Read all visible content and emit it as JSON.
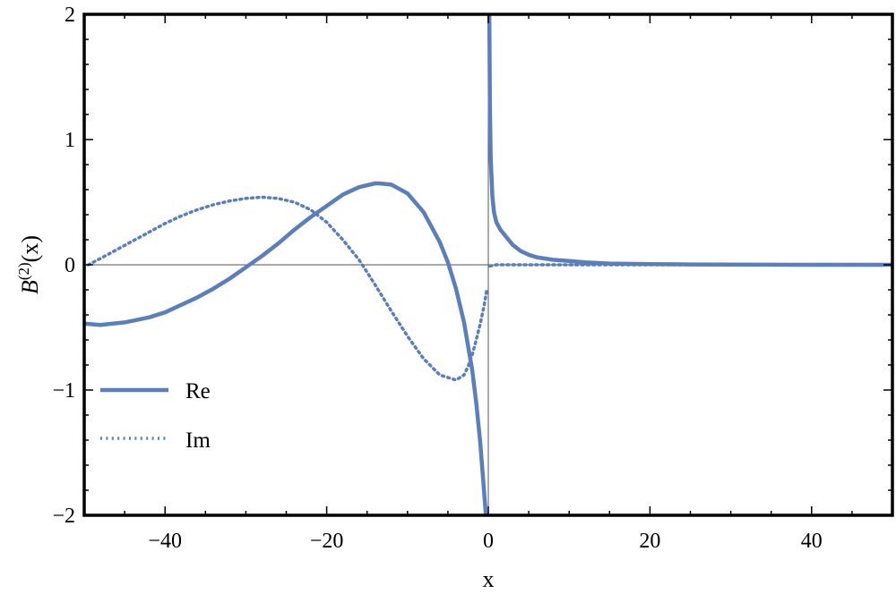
{
  "chart_data": {
    "type": "line",
    "xlabel": "x",
    "ylabel": "B(2)(x)",
    "ylabel_base": "B",
    "ylabel_sup": "(2)",
    "ylabel_arg": "(x)",
    "xlim": [
      -50,
      50
    ],
    "ylim": [
      -2,
      2
    ],
    "x_ticks": [
      -40,
      -20,
      0,
      20,
      40
    ],
    "x_tick_labels": [
      "−40",
      "−20",
      "0",
      "20",
      "40"
    ],
    "y_ticks": [
      -2,
      -1,
      0,
      1,
      2
    ],
    "y_tick_labels": [
      "−2",
      "−1",
      "0",
      "1",
      "2"
    ],
    "grid": false,
    "legend_position": "bottom-left",
    "color": "#5b7fbd",
    "series": [
      {
        "name": "Re",
        "style": "solid",
        "segments": [
          {
            "x": [
              -50,
              -48,
              -45,
              -42,
              -40,
              -38,
              -36,
              -34,
              -32,
              -30,
              -28,
              -26,
              -24,
              -22,
              -20,
              -18,
              -16,
              -14,
              -13.5,
              -12,
              -10,
              -8,
              -6,
              -5,
              -4,
              -3,
              -2,
              -1.5,
              -1,
              -0.6,
              -0.3
            ],
            "y": [
              -0.47,
              -0.48,
              -0.46,
              -0.42,
              -0.38,
              -0.32,
              -0.26,
              -0.19,
              -0.11,
              -0.02,
              0.07,
              0.17,
              0.28,
              0.38,
              0.47,
              0.56,
              0.62,
              0.65,
              0.65,
              0.64,
              0.57,
              0.42,
              0.18,
              0.02,
              -0.19,
              -0.46,
              -0.84,
              -1.1,
              -1.42,
              -1.75,
              -2.0
            ]
          },
          {
            "x": [
              0.12,
              0.15,
              0.2,
              0.3,
              0.5,
              0.7,
              1,
              1.5,
              2,
              3,
              4,
              5,
              6,
              8,
              10,
              12,
              15,
              20,
              25,
              30,
              35,
              40,
              45,
              50
            ],
            "y": [
              2.0,
              1.7,
              1.25,
              0.85,
              0.55,
              0.42,
              0.34,
              0.28,
              0.24,
              0.16,
              0.11,
              0.08,
              0.06,
              0.04,
              0.03,
              0.02,
              0.01,
              0.005,
              0.003,
              0.002,
              0.001,
              0.0,
              0.0,
              0.0
            ]
          }
        ]
      },
      {
        "name": "Im",
        "style": "dotted",
        "segments": [
          {
            "x": [
              -49.5,
              -48,
              -46,
              -44,
              -42,
              -40,
              -38,
              -36,
              -34,
              -32,
              -30,
              -28,
              -26,
              -24,
              -22,
              -20,
              -18,
              -16,
              -14,
              -12,
              -10,
              -8,
              -6,
              -4,
              -3,
              -2.5,
              -2,
              -1.5,
              -1,
              -0.5,
              -0.2
            ],
            "y": [
              0.0,
              0.05,
              0.12,
              0.19,
              0.26,
              0.33,
              0.39,
              0.44,
              0.48,
              0.51,
              0.53,
              0.54,
              0.53,
              0.5,
              0.44,
              0.34,
              0.2,
              0.04,
              -0.16,
              -0.37,
              -0.57,
              -0.75,
              -0.88,
              -0.92,
              -0.88,
              -0.81,
              -0.72,
              -0.6,
              -0.47,
              -0.32,
              -0.2
            ]
          },
          {
            "x": [
              0.2,
              1,
              2,
              3,
              5,
              8,
              12,
              20,
              30,
              40,
              50
            ],
            "y": [
              -0.01,
              0.0,
              0.0,
              0.0,
              0.0,
              0.0,
              0.0,
              0.0,
              0.0,
              0.0,
              0.0
            ]
          }
        ]
      }
    ]
  }
}
